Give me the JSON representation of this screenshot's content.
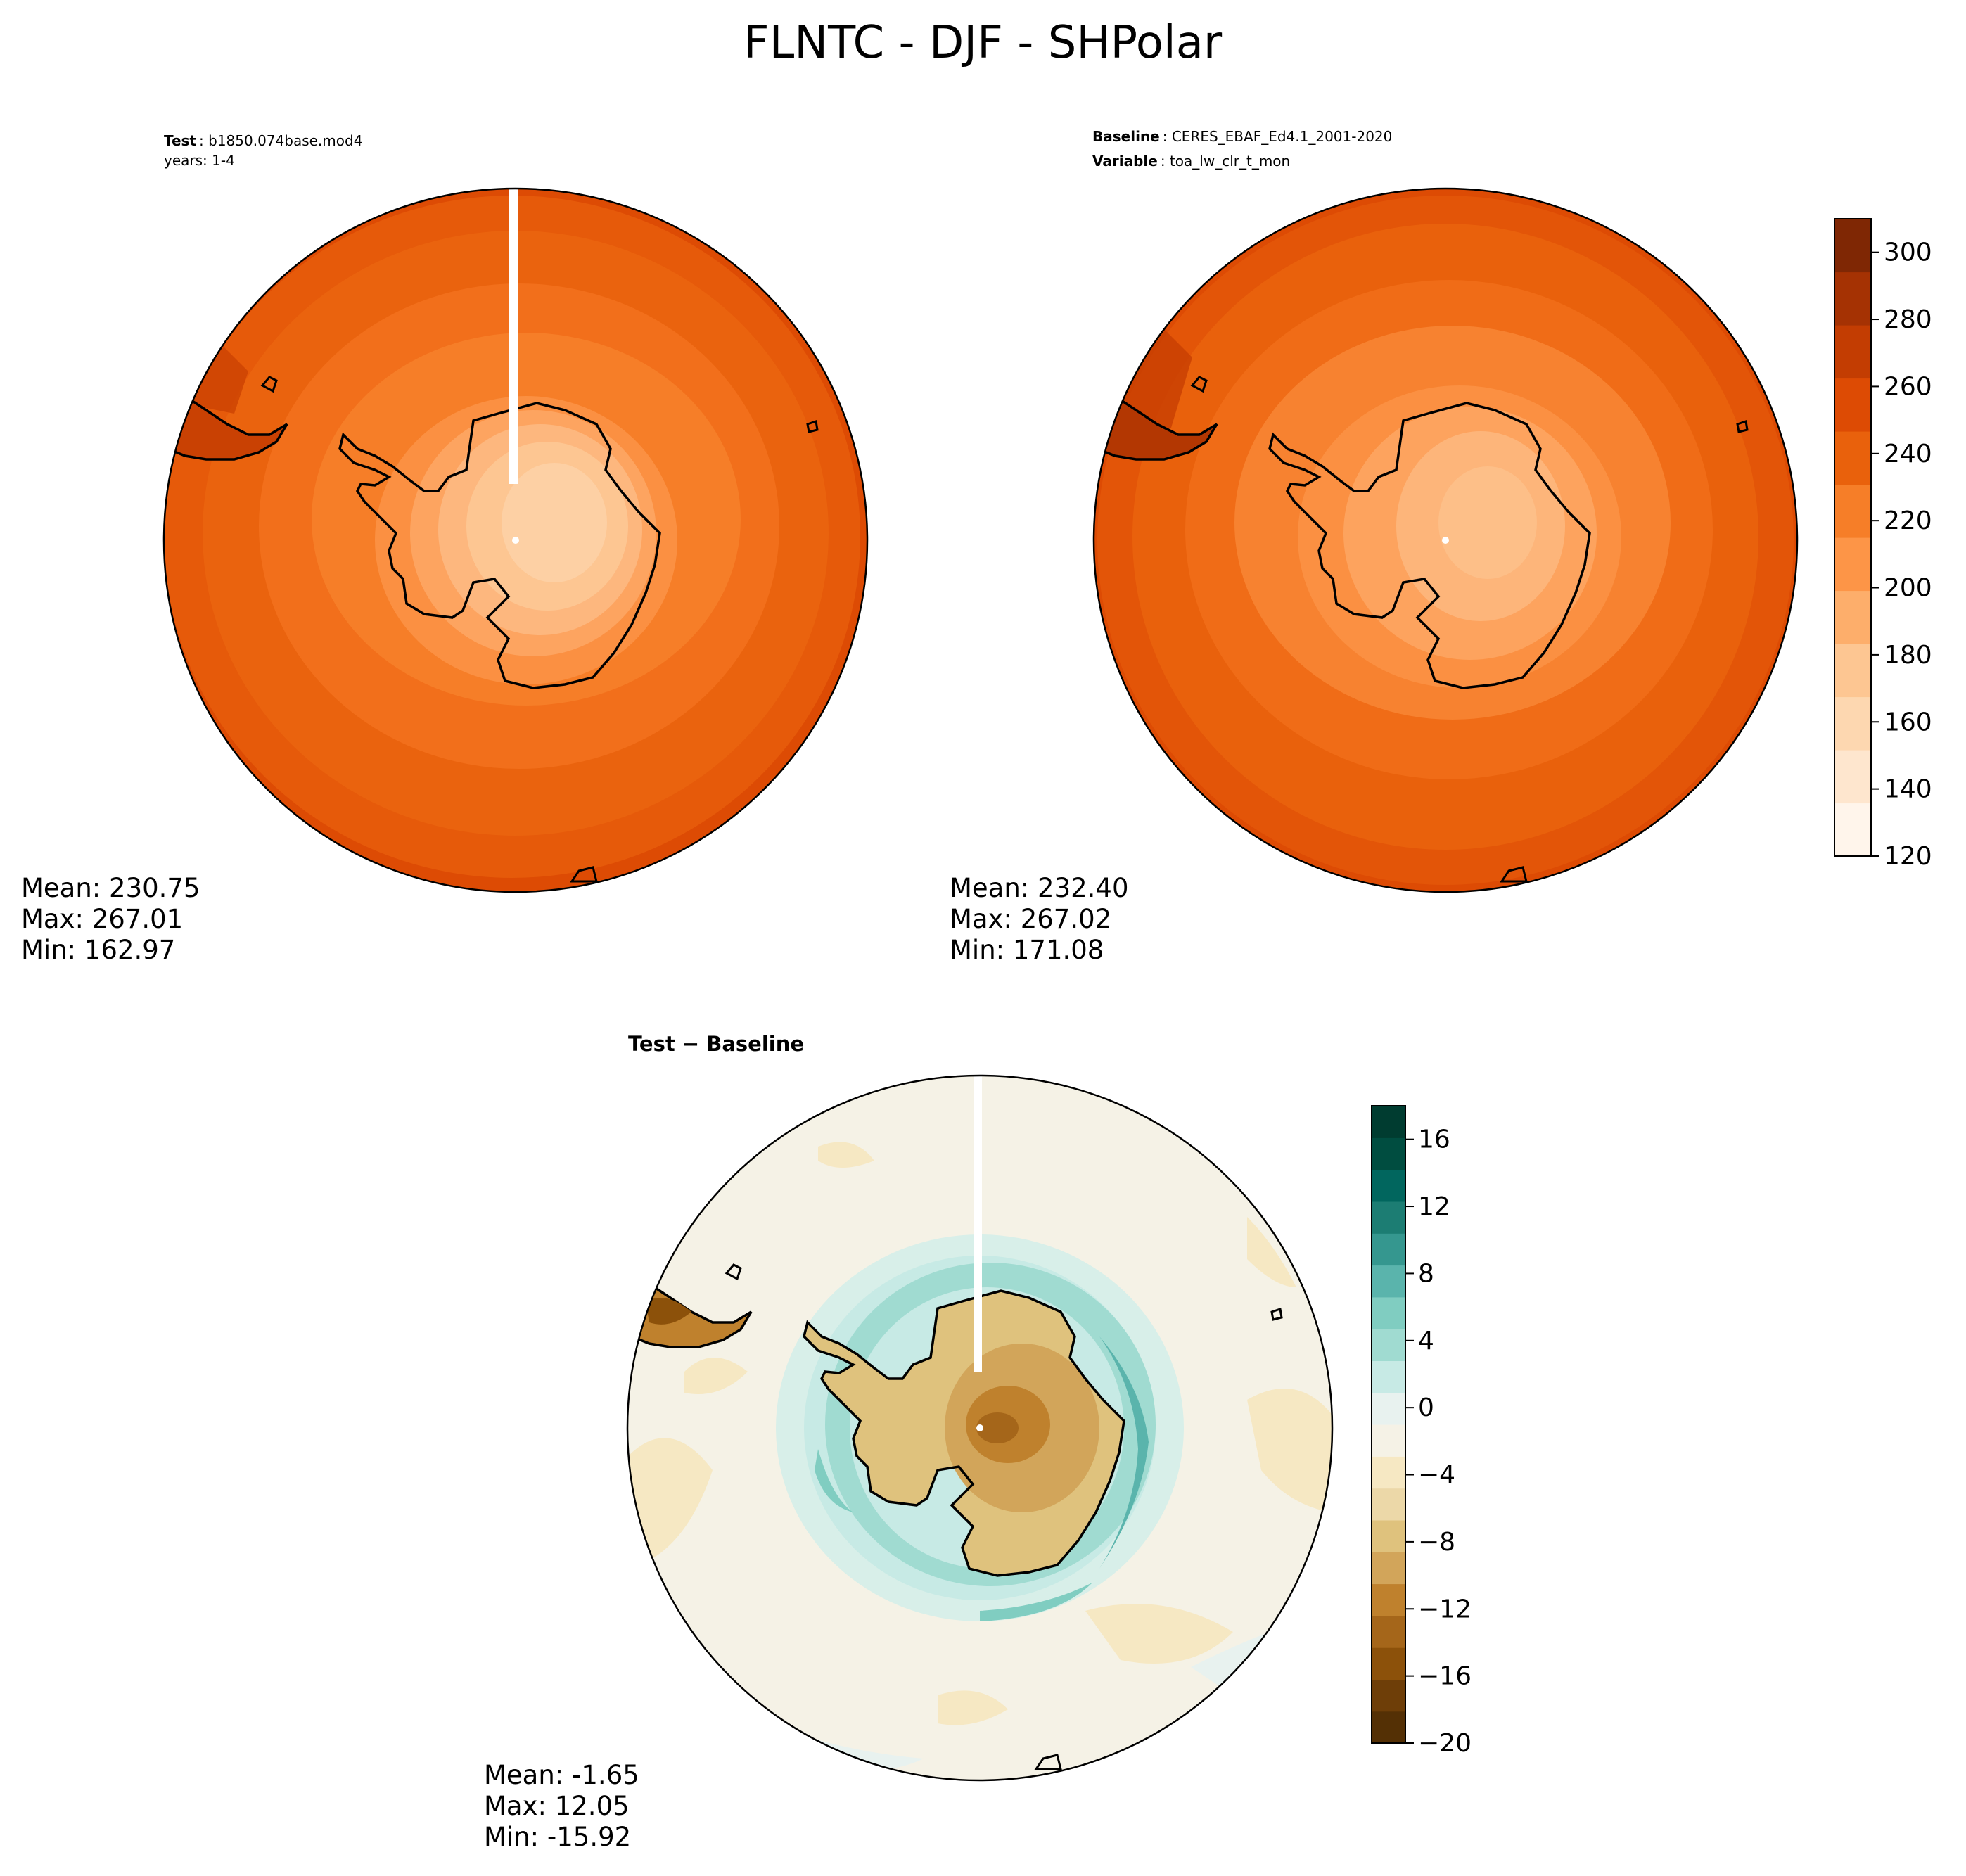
{
  "figure": {
    "title": "FLNTC - DJF - SHPolar"
  },
  "panels": {
    "test": {
      "header_key": "Test",
      "header_value": "b1850.074base.mod4",
      "header_line2": "years: 1-4",
      "mean": "Mean: 230.75",
      "max": "Max: 267.01",
      "min": "Min: 162.97"
    },
    "baseline": {
      "header_key": "Baseline",
      "header_value": "CERES_EBAF_Ed4.1_2001-2020",
      "header_key2": "Variable",
      "header_value2": "toa_lw_clr_t_mon",
      "mean": "Mean: 232.40",
      "max": "Max: 267.02",
      "min": "Min: 171.08"
    },
    "diff": {
      "title": "Test − Baseline",
      "mean": "Mean: -1.65",
      "max": "Max: 12.05",
      "min": "Min: -15.92"
    }
  },
  "colorbars": {
    "main": {
      "range": [
        120,
        310
      ],
      "ticks": [
        "120",
        "140",
        "160",
        "180",
        "200",
        "220",
        "240",
        "260",
        "280",
        "300"
      ],
      "colors": [
        "#fff5eb",
        "#fee6ce",
        "#fdd7b0",
        "#fdc692",
        "#fdae6b",
        "#fd9547",
        "#f67e28",
        "#e9610c",
        "#dd4b04",
        "#c33d02",
        "#a53203",
        "#7f2704"
      ]
    },
    "diff": {
      "range": [
        -20,
        18
      ],
      "ticks": [
        "−20",
        "−16",
        "−12",
        "−8",
        "−4",
        "0",
        "4",
        "8",
        "12",
        "16"
      ],
      "colors": [
        "#543005",
        "#6e3e08",
        "#8c510a",
        "#a5661a",
        "#bf812d",
        "#d2a55a",
        "#dfc27d",
        "#ecd8a8",
        "#f6e8c3",
        "#f5f2e6",
        "#e8f2ef",
        "#c7eae5",
        "#a0dbd1",
        "#80cdc1",
        "#5ab4ac",
        "#35978f",
        "#1c7d73",
        "#01665e",
        "#004d40",
        "#003c30"
      ]
    }
  },
  "chart_data": {
    "type": "heatmap",
    "projection": "south-polar-stereographic",
    "title": "FLNTC - DJF - SHPolar",
    "panels": [
      {
        "name": "Test",
        "case": "b1850.074base.mod4",
        "years": "1-4",
        "mean": 230.75,
        "max": 267.01,
        "min": 162.97,
        "colorbar_range": [
          120,
          310
        ]
      },
      {
        "name": "Baseline",
        "case": "CERES_EBAF_Ed4.1_2001-2020",
        "variable": "toa_lw_clr_t_mon",
        "mean": 232.4,
        "max": 267.02,
        "min": 171.08,
        "colorbar_range": [
          120,
          310
        ]
      },
      {
        "name": "Test − Baseline",
        "mean": -1.65,
        "max": 12.05,
        "min": -15.92,
        "colorbar_range": [
          -20,
          18
        ]
      }
    ],
    "main_colorbar_ticks": [
      120,
      140,
      160,
      180,
      200,
      220,
      240,
      260,
      280,
      300
    ],
    "diff_colorbar_ticks": [
      -20,
      -16,
      -12,
      -8,
      -4,
      0,
      4,
      8,
      12,
      16
    ]
  }
}
